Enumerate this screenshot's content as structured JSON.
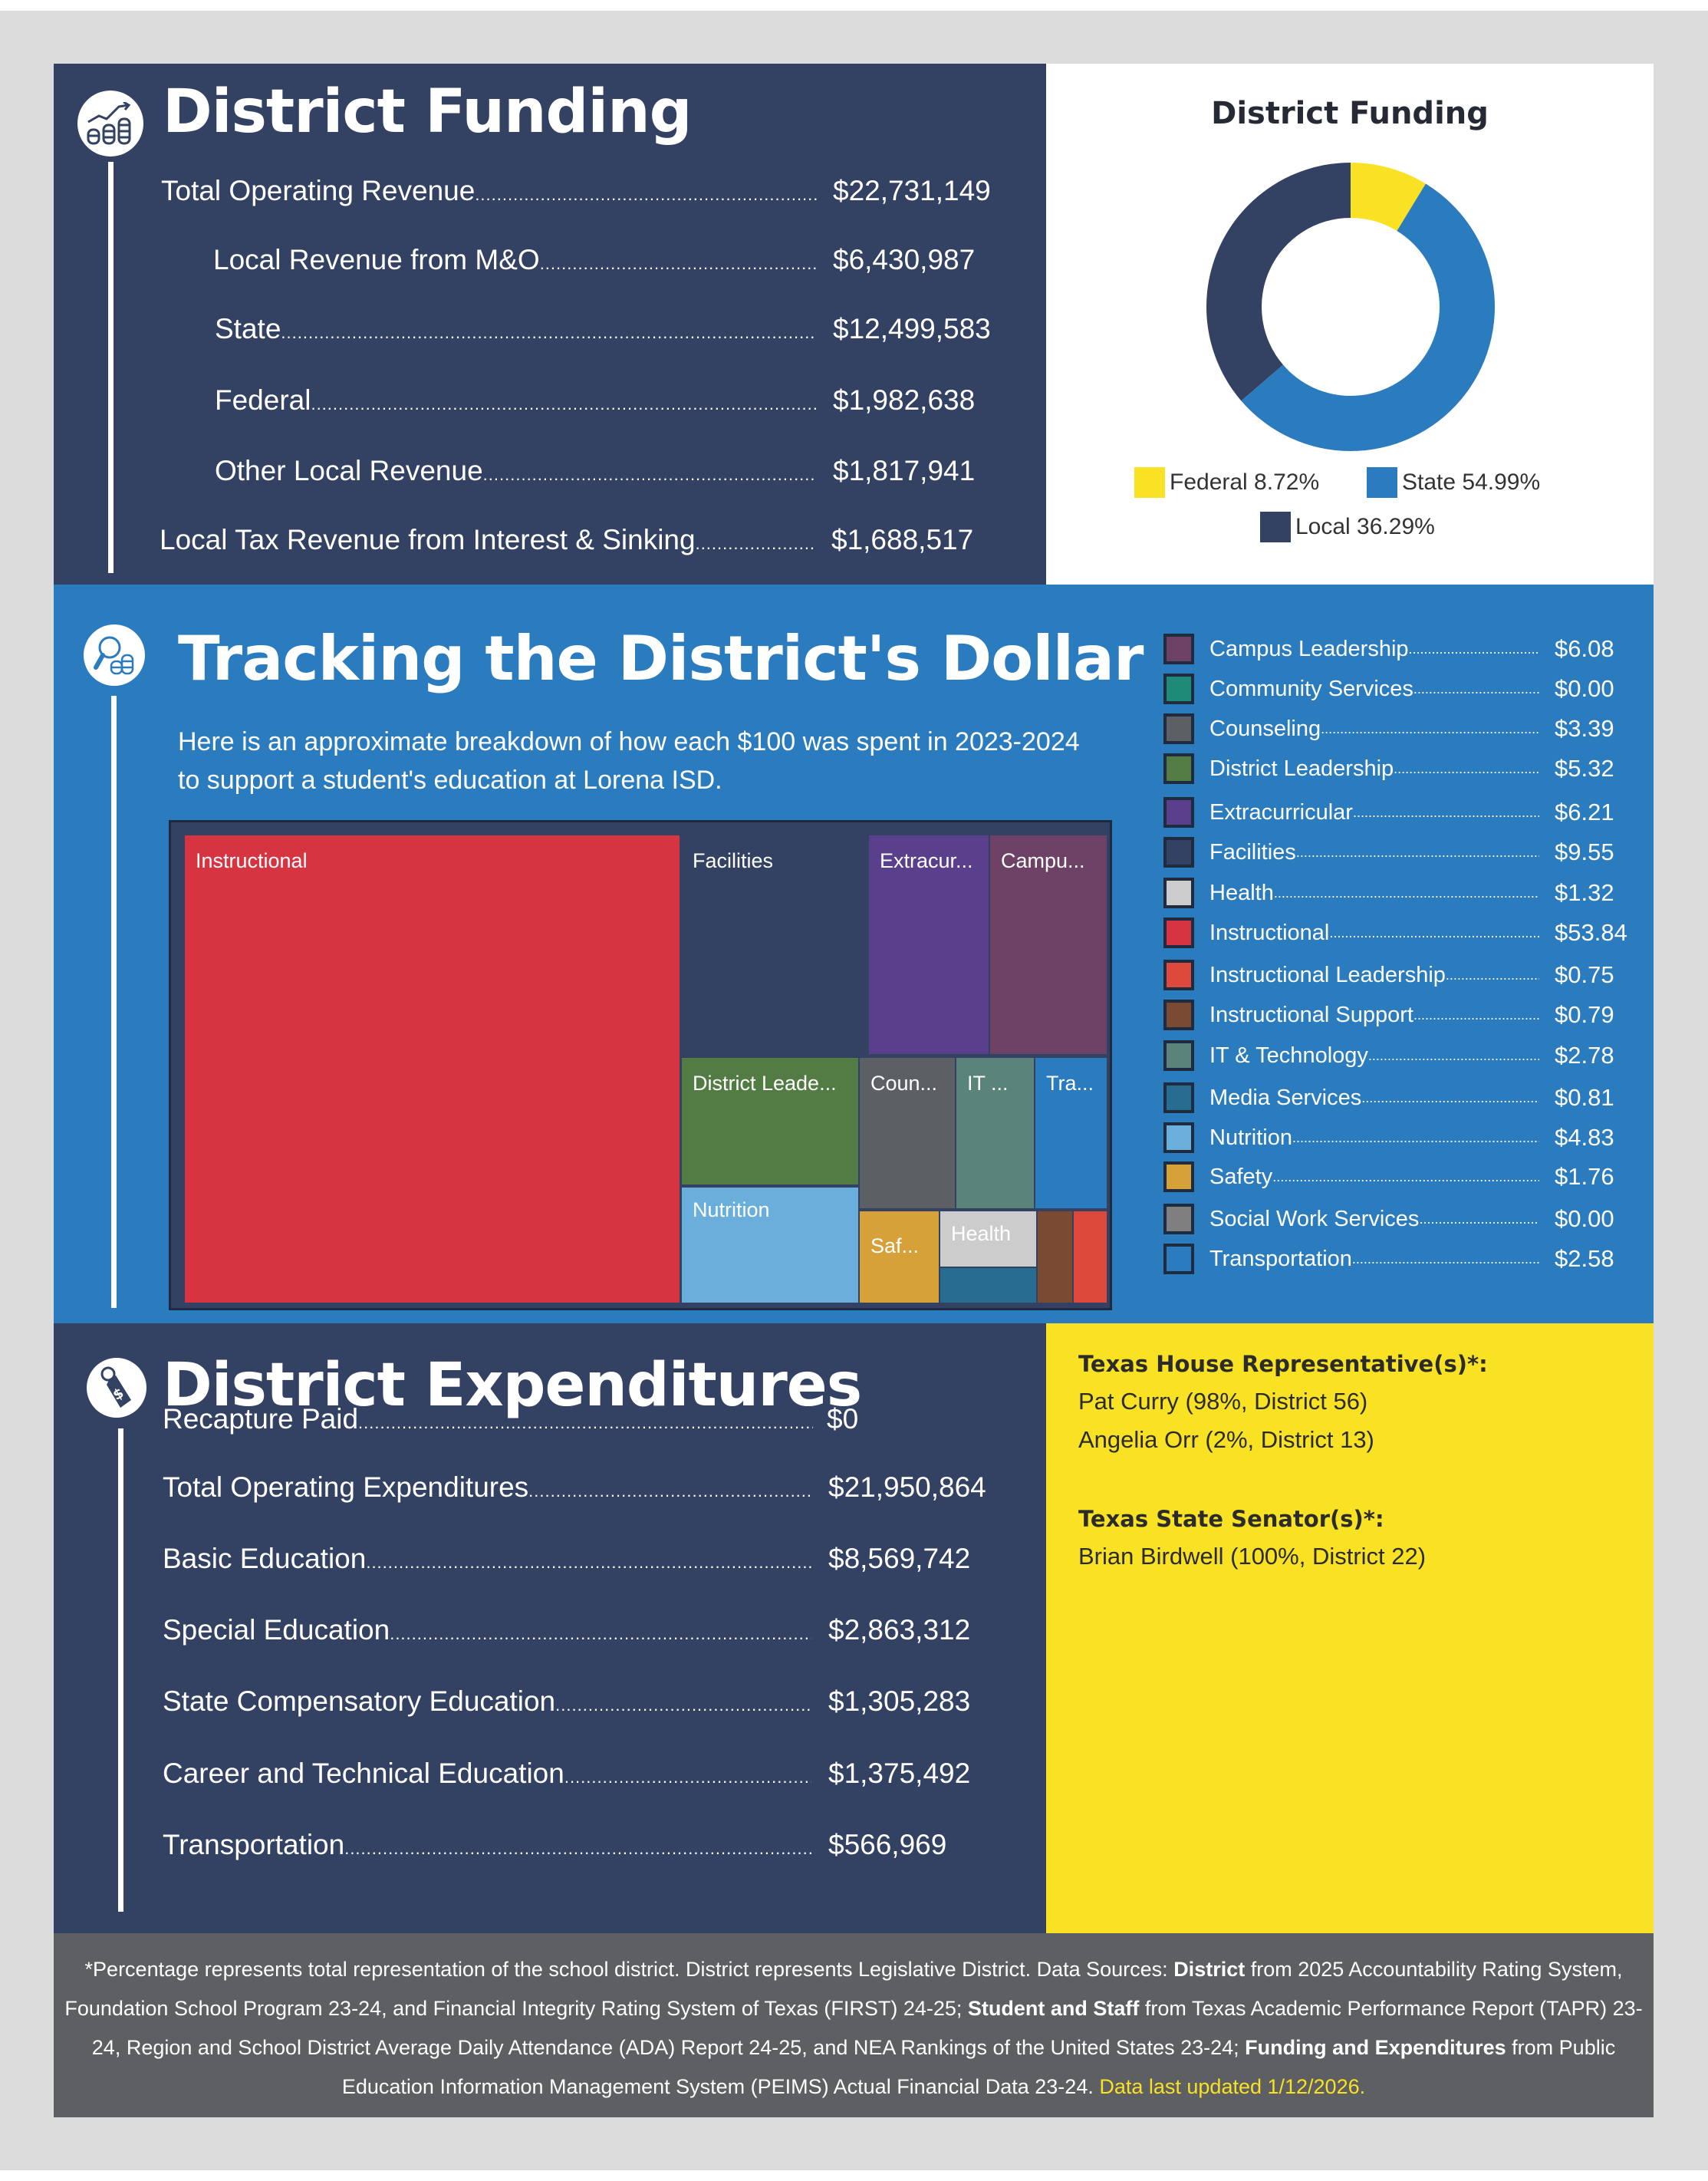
{
  "funding": {
    "title": "District Funding",
    "icon": "coins-growth-icon",
    "rows": [
      {
        "label": "Total Operating Revenue",
        "value": "$22,731,149"
      },
      {
        "label": "Local Revenue from M&O",
        "value": "$6,430,987"
      },
      {
        "label": "State",
        "value": "$12,499,583"
      },
      {
        "label": "Federal",
        "value": "$1,982,638"
      },
      {
        "label": "Other Local Revenue",
        "value": "$1,817,941"
      },
      {
        "label": "Local Tax Revenue from Interest & Sinking",
        "value": "$1,688,517"
      }
    ]
  },
  "tracking": {
    "title": "Tracking the District's Dollar",
    "icon": "magnifier-coins-icon",
    "description": "Here is an approximate breakdown of how each $100 was spent in 2023-2024 to support a student's education at Lorena ISD."
  },
  "expenditures": {
    "title": "District Expenditures",
    "icon": "price-tag-dollar-icon",
    "rows": [
      {
        "label": "Recapture Paid",
        "value": "$0"
      },
      {
        "label": "Total Operating Expenditures",
        "value": "$21,950,864"
      },
      {
        "label": "Basic Education",
        "value": "$8,569,742"
      },
      {
        "label": "Special Education",
        "value": "$2,863,312"
      },
      {
        "label": "State Compensatory Education",
        "value": "$1,305,283"
      },
      {
        "label": "Career and Technical Education",
        "value": "$1,375,492"
      },
      {
        "label": "Transportation",
        "value": "$566,969"
      }
    ]
  },
  "representatives": {
    "house_heading": "Texas House Representative(s)*:",
    "house": [
      "Pat Curry (98%, District 56)",
      "Angelia Orr (2%, District 13)"
    ],
    "senate_heading": "Texas State Senator(s)*:",
    "senate": [
      "Brian Birdwell (100%, District 22)"
    ]
  },
  "footer": {
    "p1": "*Percentage represents total representation of the school district. District represents Legislative District. Data Sources: ",
    "b1": "District",
    "p2": " from 2025 Accountability Rating System, Foundation School Program 23-24, and Financial Integrity Rating System of Texas (FIRST) 24-25; ",
    "b2": "Student and Staff",
    "p3": " from Texas Academic Performance Report (TAPR) 23-24, Region and School District Average Daily Attendance (ADA) Report 24-25, and NEA Rankings of the United States 23-24; ",
    "b3": "Funding and Expenditures",
    "p4": " from Public Education Information Management System (PEIMS) Actual Financial Data 23-24. ",
    "updated": "Data last updated 1/12/2026."
  },
  "colors": {
    "navy": "#334163",
    "blue": "#2b7bbf",
    "yellow": "#f9e123",
    "footer_gray": "#5d5f63"
  },
  "chart_data": [
    {
      "type": "pie",
      "title": "District Funding",
      "variant": "donut",
      "categories": [
        "Federal",
        "State",
        "Local"
      ],
      "values": [
        8.72,
        54.99,
        36.29
      ],
      "unit": "%",
      "colors": [
        "#f9e123",
        "#2b7bbf",
        "#334163"
      ],
      "legend": [
        "Federal 8.72%",
        "State 54.99%",
        "Local 36.29%"
      ],
      "legend_placement": "bottom"
    },
    {
      "type": "treemap",
      "title": "Tracking the District's Dollar",
      "unit": "$ per $100",
      "items": [
        {
          "name": "Campus Leadership",
          "value": 6.08,
          "display": "$6.08",
          "tile_label": "Campu...",
          "color": "#6e4266"
        },
        {
          "name": "Community Services",
          "value": 0.0,
          "display": "$0.00",
          "tile_label": "",
          "color": "#1e8a78"
        },
        {
          "name": "Counseling",
          "value": 3.39,
          "display": "$3.39",
          "tile_label": "Coun...",
          "color": "#5c5f63"
        },
        {
          "name": "District Leadership",
          "value": 5.32,
          "display": "$5.32",
          "tile_label": "District Leade...",
          "color": "#537c45"
        },
        {
          "name": "Extracurricular",
          "value": 6.21,
          "display": "$6.21",
          "tile_label": "Extracur...",
          "color": "#5a3f8c"
        },
        {
          "name": "Facilities",
          "value": 9.55,
          "display": "$9.55",
          "tile_label": "Facilities",
          "color": "#334163"
        },
        {
          "name": "Health",
          "value": 1.32,
          "display": "$1.32",
          "tile_label": "Health",
          "color": "#cccccc"
        },
        {
          "name": "Instructional",
          "value": 53.84,
          "display": "$53.84",
          "tile_label": "Instructional",
          "color": "#d73442"
        },
        {
          "name": "Instructional Leadership",
          "value": 0.75,
          "display": "$0.75",
          "tile_label": "",
          "color": "#dd4a3c"
        },
        {
          "name": "Instructional Support",
          "value": 0.79,
          "display": "$0.79",
          "tile_label": "",
          "color": "#7a4a32"
        },
        {
          "name": "IT & Technology",
          "value": 2.78,
          "display": "$2.78",
          "tile_label": "IT ...",
          "color": "#5a8479"
        },
        {
          "name": "Media Services",
          "value": 0.81,
          "display": "$0.81",
          "tile_label": "",
          "color": "#276d91"
        },
        {
          "name": "Nutrition",
          "value": 4.83,
          "display": "$4.83",
          "tile_label": "Nutrition",
          "color": "#6aaedb"
        },
        {
          "name": "Safety",
          "value": 1.76,
          "display": "$1.76",
          "tile_label": "Saf...",
          "color": "#d6a138"
        },
        {
          "name": "Social Work Services",
          "value": 0.0,
          "display": "$0.00",
          "tile_label": "",
          "color": "#7f7f7f"
        },
        {
          "name": "Transportation",
          "value": 2.58,
          "display": "$2.58",
          "tile_label": "Tra...",
          "color": "#2b7bbf"
        }
      ]
    }
  ]
}
